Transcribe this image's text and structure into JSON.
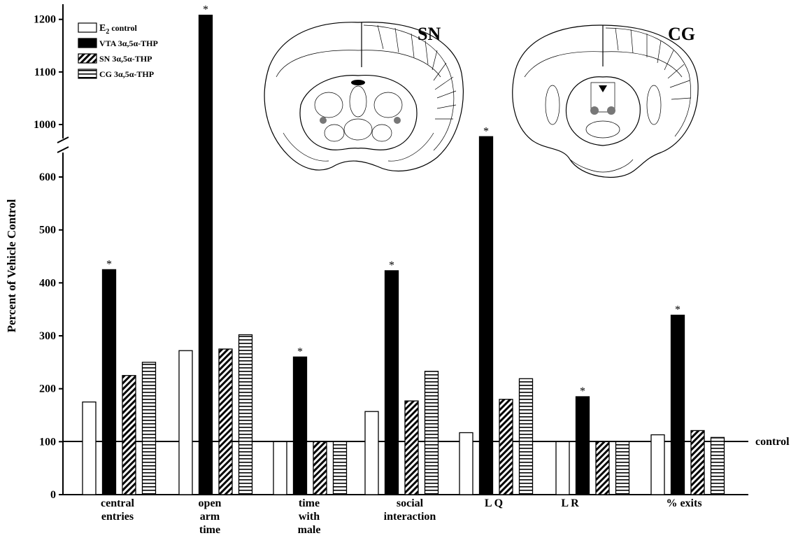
{
  "chart_data": {
    "type": "bar",
    "ylabel": "Percent of Vehicle Control",
    "y_ticks_lower": [
      0,
      100,
      200,
      300,
      400,
      500,
      600
    ],
    "y_ticks_upper": [
      1000,
      1100,
      1200
    ],
    "ylim": [
      0,
      1200
    ],
    "axis_break": true,
    "reference_line": {
      "value": 100,
      "label": "control"
    },
    "categories": [
      [
        "central",
        "entries"
      ],
      [
        "open",
        "arm",
        "time"
      ],
      [
        "time",
        "with",
        "male"
      ],
      [
        "social",
        "interaction"
      ],
      [
        "L Q"
      ],
      [
        "L R"
      ],
      [
        "% exits"
      ]
    ],
    "series": [
      {
        "name": "E2 control",
        "name_main": "E",
        "name_sub": "2",
        "name_rest": " control",
        "pattern": "white",
        "values": [
          175,
          272,
          100,
          157,
          117,
          100,
          113
        ]
      },
      {
        "name": "VTA 3α,5α-THP",
        "pattern": "black",
        "values": [
          425,
          1208,
          260,
          423,
          977,
          185,
          339
        ]
      },
      {
        "name": "SN 3α,5α-THP",
        "pattern": "diagonal",
        "values": [
          225,
          275,
          100,
          177,
          180,
          100,
          121
        ]
      },
      {
        "name": "CG 3α,5α-THP",
        "pattern": "horizontal",
        "values": [
          250,
          302,
          100,
          233,
          219,
          100,
          108
        ]
      }
    ],
    "significance": {
      "marker": "*",
      "series": "VTA 3α,5α-THP",
      "categories": [
        0,
        1,
        2,
        3,
        4,
        5,
        6
      ]
    },
    "grid": false,
    "legend_position": "top-left"
  },
  "insets": {
    "left_label": "SN",
    "right_label": "CG"
  }
}
